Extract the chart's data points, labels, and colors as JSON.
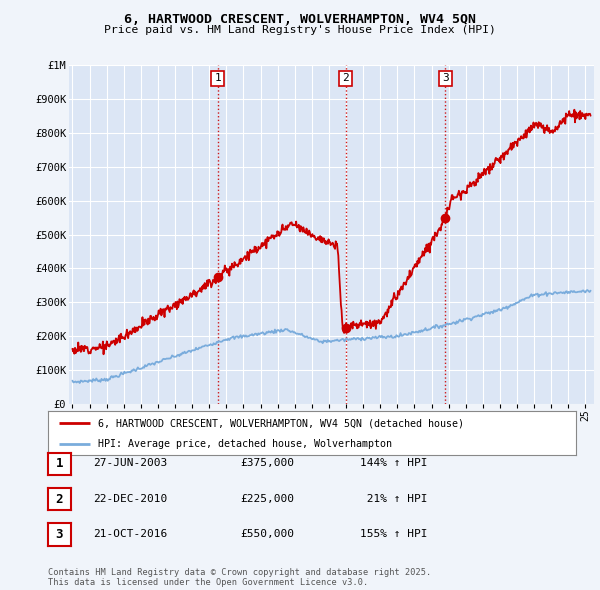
{
  "title_line1": "6, HARTWOOD CRESCENT, WOLVERHAMPTON, WV4 5QN",
  "title_line2": "Price paid vs. HM Land Registry's House Price Index (HPI)",
  "ylabel_ticks": [
    "£0",
    "£100K",
    "£200K",
    "£300K",
    "£400K",
    "£500K",
    "£600K",
    "£700K",
    "£800K",
    "£900K",
    "£1M"
  ],
  "ytick_values": [
    0,
    100000,
    200000,
    300000,
    400000,
    500000,
    600000,
    700000,
    800000,
    900000,
    1000000
  ],
  "xlim_start": 1994.8,
  "xlim_end": 2025.5,
  "ylim_min": 0,
  "ylim_max": 1000000,
  "bg_color": "#f0f4fa",
  "plot_bg_color": "#dce6f5",
  "grid_color": "#ffffff",
  "red_line_color": "#cc0000",
  "blue_line_color": "#7aacdc",
  "sale_markers": [
    {
      "year": 2003.49,
      "price": 375000,
      "label": "1"
    },
    {
      "year": 2010.97,
      "price": 225000,
      "label": "2"
    },
    {
      "year": 2016.81,
      "price": 550000,
      "label": "3"
    }
  ],
  "vline_color": "#cc0000",
  "legend_label_red": "6, HARTWOOD CRESCENT, WOLVERHAMPTON, WV4 5QN (detached house)",
  "legend_label_blue": "HPI: Average price, detached house, Wolverhampton",
  "table_rows": [
    {
      "num": "1",
      "date": "27-JUN-2003",
      "price": "£375,000",
      "hpi": "144% ↑ HPI"
    },
    {
      "num": "2",
      "date": "22-DEC-2010",
      "price": "£225,000",
      "hpi": " 21% ↑ HPI"
    },
    {
      "num": "3",
      "date": "21-OCT-2016",
      "price": "£550,000",
      "hpi": "155% ↑ HPI"
    }
  ],
  "footnote": "Contains HM Land Registry data © Crown copyright and database right 2025.\nThis data is licensed under the Open Government Licence v3.0."
}
